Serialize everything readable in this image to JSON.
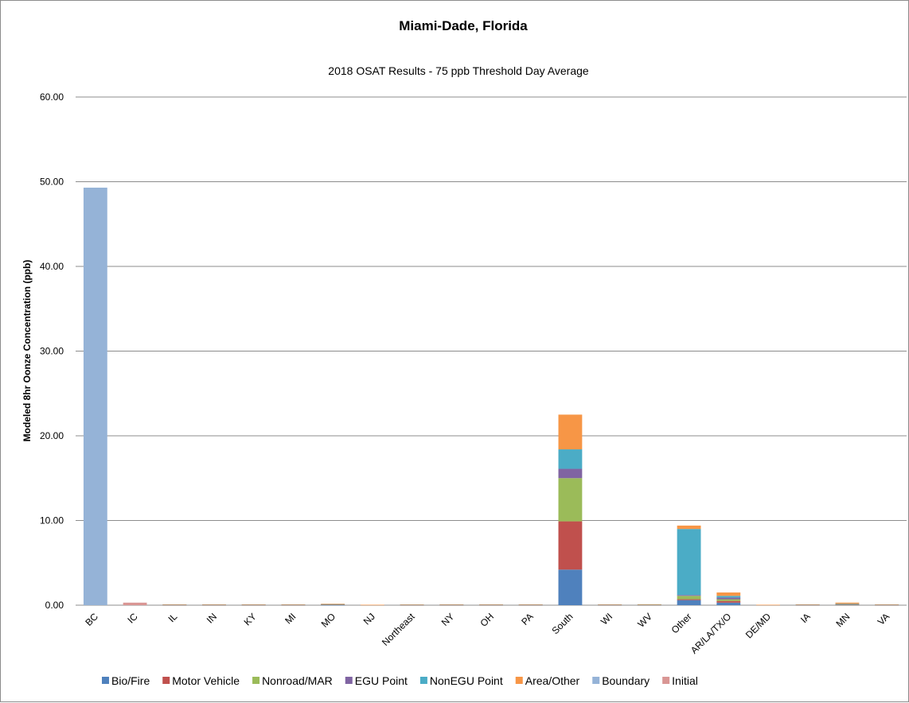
{
  "chart_data": {
    "type": "bar",
    "stacked": true,
    "title": "Miami-Dade, Florida",
    "subtitle": "2018 OSAT Results - 75 ppb Threshold Day Average",
    "xlabel": "",
    "ylabel": "Modeled 8hr Oonze Concentration (ppb)",
    "ylim": [
      0,
      60
    ],
    "yticks": [
      "0.00",
      "10.00",
      "20.00",
      "30.00",
      "40.00",
      "50.00",
      "60.00"
    ],
    "grid": true,
    "legend_position": "bottom",
    "categories": [
      "BC",
      "IC",
      "IL",
      "IN",
      "KY",
      "MI",
      "MO",
      "NJ",
      "Northeast",
      "NY",
      "OH",
      "PA",
      "South",
      "WI",
      "WV",
      "Other",
      "AR/LA/TX/O",
      "DE/MD",
      "IA",
      "MN",
      "VA"
    ],
    "series": [
      {
        "name": "Bio/Fire",
        "color": "#4F81BD",
        "values": [
          0,
          0,
          0.02,
          0.02,
          0.02,
          0.02,
          0.03,
          0.01,
          0.02,
          0.02,
          0.02,
          0.02,
          4.2,
          0.02,
          0.02,
          0.6,
          0.3,
          0.01,
          0.02,
          0.05,
          0.02
        ]
      },
      {
        "name": "Motor Vehicle",
        "color": "#C0504D",
        "values": [
          0,
          0,
          0.02,
          0.02,
          0.02,
          0.02,
          0.03,
          0.01,
          0.02,
          0.02,
          0.02,
          0.02,
          5.7,
          0.02,
          0.02,
          0.1,
          0.2,
          0.01,
          0.02,
          0.03,
          0.02
        ]
      },
      {
        "name": "Nonroad/MAR",
        "color": "#9BBB59",
        "values": [
          0,
          0,
          0.01,
          0.01,
          0.01,
          0.01,
          0.02,
          0.01,
          0.01,
          0.01,
          0.01,
          0.01,
          5.1,
          0.01,
          0.01,
          0.4,
          0.2,
          0.01,
          0.01,
          0.03,
          0.01
        ]
      },
      {
        "name": "EGU Point",
        "color": "#8064A2",
        "values": [
          0,
          0,
          0.02,
          0.02,
          0.02,
          0.02,
          0.03,
          0.01,
          0.01,
          0.02,
          0.02,
          0.02,
          1.1,
          0.02,
          0.03,
          0.1,
          0.2,
          0.01,
          0.02,
          0.03,
          0.02
        ]
      },
      {
        "name": "NonEGU Point",
        "color": "#4BACC6",
        "values": [
          0,
          0,
          0.01,
          0.01,
          0.01,
          0.01,
          0.02,
          0.0,
          0.01,
          0.01,
          0.01,
          0.01,
          2.3,
          0.01,
          0.01,
          7.8,
          0.2,
          0.0,
          0.01,
          0.02,
          0.01
        ]
      },
      {
        "name": "Area/Other",
        "color": "#F79646",
        "values": [
          0,
          0,
          0.02,
          0.02,
          0.02,
          0.02,
          0.04,
          0.01,
          0.02,
          0.02,
          0.02,
          0.02,
          4.1,
          0.02,
          0.02,
          0.4,
          0.4,
          0.01,
          0.02,
          0.14,
          0.02
        ]
      },
      {
        "name": "Boundary",
        "color": "#95B3D7",
        "values": [
          49.3,
          0,
          0,
          0,
          0,
          0,
          0,
          0,
          0,
          0,
          0,
          0,
          0,
          0,
          0,
          0,
          0,
          0,
          0,
          0,
          0
        ]
      },
      {
        "name": "Initial",
        "color": "#D99694",
        "values": [
          0,
          0.3,
          0,
          0,
          0,
          0,
          0,
          0,
          0,
          0,
          0,
          0,
          0,
          0,
          0,
          0,
          0,
          0,
          0,
          0,
          0
        ]
      }
    ]
  }
}
